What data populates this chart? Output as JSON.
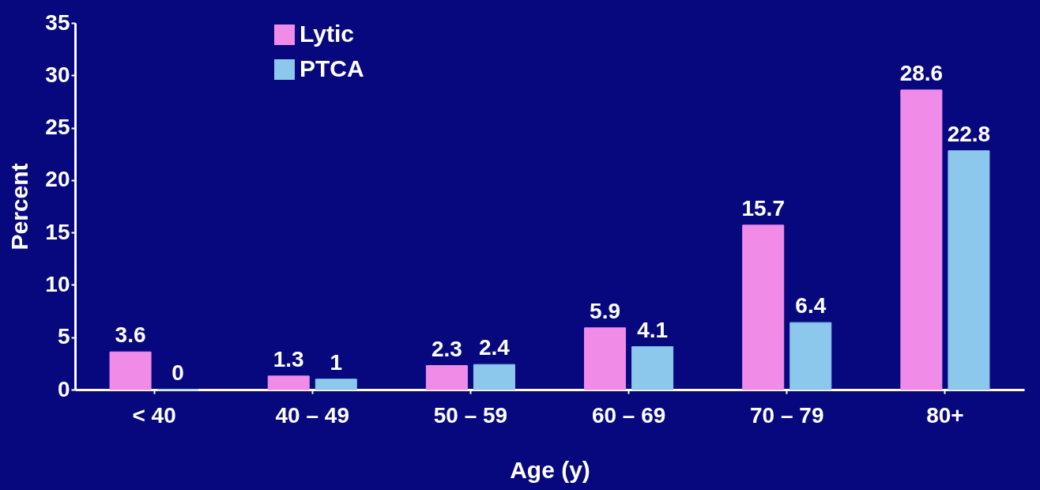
{
  "chart_data": {
    "type": "bar",
    "xlabel": "Age (y)",
    "ylabel": "Percent",
    "categories": [
      "< 40",
      "40 – 49",
      "50 – 59",
      "60 – 69",
      "70 – 79",
      "80+"
    ],
    "series": [
      {
        "name": "Lytic",
        "color": "#f08ce8",
        "values": [
          3.6,
          1.3,
          2.3,
          5.9,
          15.7,
          28.6
        ]
      },
      {
        "name": "PTCA",
        "color": "#8cc8ec",
        "values": [
          0,
          1,
          2.4,
          4.1,
          6.4,
          22.8
        ]
      }
    ],
    "ylim": [
      0,
      35
    ],
    "yticks": [
      0,
      5,
      10,
      15,
      20,
      25,
      30,
      35
    ],
    "grid": false,
    "legend": "top left",
    "data_labels": true
  }
}
